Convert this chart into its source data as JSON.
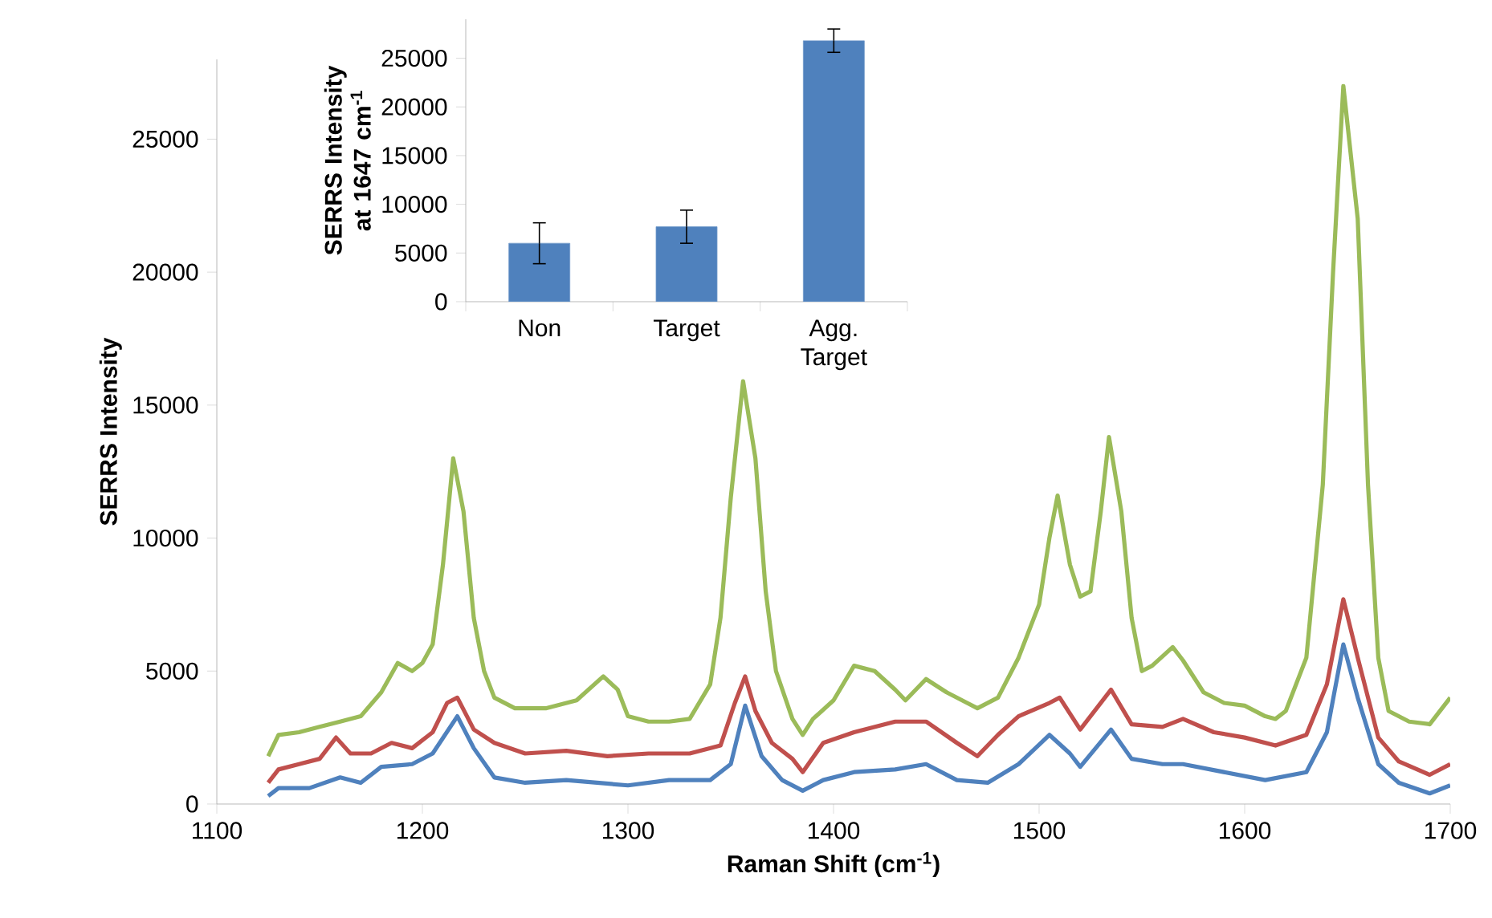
{
  "chart_data": [
    {
      "type": "line",
      "xlabel": "Raman Shift (cm$^{-1}$)",
      "ylabel": "SERRS Intensity",
      "xlim": [
        1100,
        1700
      ],
      "ylim": [
        0,
        28000
      ],
      "xticks": [
        1100,
        1200,
        1300,
        1400,
        1500,
        1600,
        1700
      ],
      "yticks": [
        0,
        5000,
        10000,
        15000,
        20000,
        25000
      ],
      "grid": false,
      "series": [
        {
          "color": "#9bbb59",
          "x": [
            1125,
            1130,
            1140,
            1150,
            1160,
            1170,
            1180,
            1188,
            1195,
            1200,
            1205,
            1210,
            1215,
            1220,
            1225,
            1230,
            1235,
            1245,
            1260,
            1275,
            1288,
            1295,
            1300,
            1310,
            1320,
            1330,
            1340,
            1345,
            1350,
            1356,
            1362,
            1367,
            1372,
            1380,
            1385,
            1390,
            1400,
            1410,
            1420,
            1430,
            1435,
            1445,
            1455,
            1465,
            1470,
            1480,
            1490,
            1500,
            1505,
            1509,
            1515,
            1520,
            1525,
            1530,
            1534,
            1540,
            1545,
            1550,
            1555,
            1565,
            1570,
            1580,
            1590,
            1600,
            1610,
            1615,
            1620,
            1630,
            1638,
            1643,
            1648,
            1655,
            1660,
            1665,
            1670,
            1680,
            1690,
            1700
          ],
          "values": [
            1800,
            2600,
            2700,
            2900,
            3100,
            3300,
            4200,
            5300,
            5000,
            5300,
            6000,
            9000,
            13000,
            11000,
            7000,
            5000,
            4000,
            3600,
            3600,
            3900,
            4800,
            4300,
            3300,
            3100,
            3100,
            3200,
            4500,
            7000,
            11500,
            15900,
            13000,
            8000,
            5000,
            3200,
            2600,
            3200,
            3900,
            5200,
            5000,
            4300,
            3900,
            4700,
            4200,
            3800,
            3600,
            4000,
            5500,
            7500,
            10000,
            11600,
            9000,
            7800,
            8000,
            11000,
            13800,
            11000,
            7000,
            5000,
            5200,
            5900,
            5400,
            4200,
            3800,
            3700,
            3300,
            3200,
            3500,
            5500,
            12000,
            20000,
            27000,
            22000,
            12000,
            5500,
            3500,
            3100,
            3000,
            4000
          ]
        },
        {
          "color": "#c0504d",
          "x": [
            1125,
            1130,
            1140,
            1150,
            1158,
            1165,
            1175,
            1185,
            1195,
            1205,
            1212,
            1217,
            1225,
            1235,
            1250,
            1270,
            1290,
            1310,
            1330,
            1345,
            1352,
            1357,
            1362,
            1370,
            1380,
            1385,
            1395,
            1410,
            1430,
            1445,
            1460,
            1470,
            1480,
            1490,
            1505,
            1510,
            1520,
            1535,
            1545,
            1560,
            1570,
            1585,
            1600,
            1615,
            1630,
            1640,
            1648,
            1655,
            1665,
            1675,
            1690,
            1700
          ],
          "values": [
            800,
            1300,
            1500,
            1700,
            2500,
            1900,
            1900,
            2300,
            2100,
            2700,
            3800,
            4000,
            2800,
            2300,
            1900,
            2000,
            1800,
            1900,
            1900,
            2200,
            3800,
            4800,
            3500,
            2300,
            1700,
            1200,
            2300,
            2700,
            3100,
            3100,
            2300,
            1800,
            2600,
            3300,
            3800,
            4000,
            2800,
            4300,
            3000,
            2900,
            3200,
            2700,
            2500,
            2200,
            2600,
            4500,
            7700,
            5500,
            2500,
            1600,
            1100,
            1500
          ]
        },
        {
          "color": "#4f81bd",
          "x": [
            1125,
            1130,
            1145,
            1160,
            1170,
            1180,
            1195,
            1205,
            1217,
            1225,
            1235,
            1250,
            1270,
            1300,
            1320,
            1340,
            1350,
            1357,
            1365,
            1375,
            1385,
            1395,
            1410,
            1430,
            1445,
            1460,
            1475,
            1490,
            1505,
            1515,
            1520,
            1535,
            1545,
            1560,
            1570,
            1590,
            1610,
            1630,
            1640,
            1648,
            1655,
            1665,
            1675,
            1690,
            1700
          ],
          "values": [
            300,
            600,
            600,
            1000,
            800,
            1400,
            1500,
            1900,
            3300,
            2100,
            1000,
            800,
            900,
            700,
            900,
            900,
            1500,
            3700,
            1800,
            900,
            500,
            900,
            1200,
            1300,
            1500,
            900,
            800,
            1500,
            2600,
            1900,
            1400,
            2800,
            1700,
            1500,
            1500,
            1200,
            900,
            1200,
            2700,
            6000,
            4000,
            1500,
            800,
            400,
            700
          ]
        }
      ]
    },
    {
      "type": "bar",
      "ylabel": "SERRS Intensity at 1647 cm$^{-1}$",
      "categories": [
        "Non",
        "Target",
        "Agg. Target"
      ],
      "values": [
        6000,
        7700,
        26800
      ],
      "errors": [
        2100,
        1700,
        1200
      ],
      "color": "#4f81bd",
      "ylim": [
        0,
        29000
      ],
      "yticks": [
        0,
        5000,
        10000,
        15000,
        20000,
        25000
      ],
      "grid": false
    }
  ]
}
